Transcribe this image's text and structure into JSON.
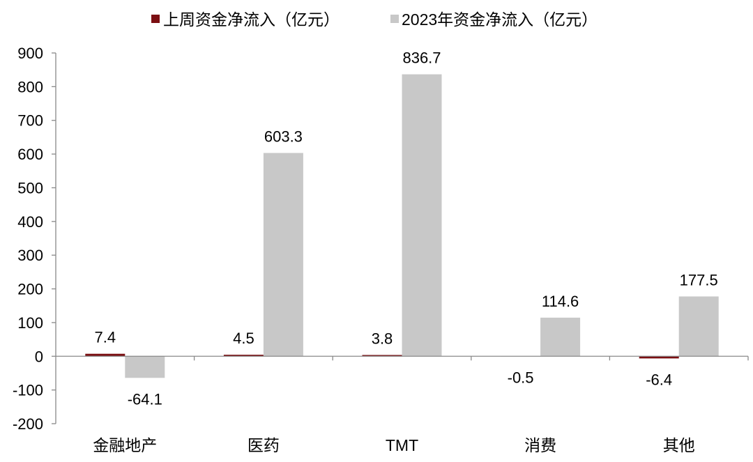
{
  "chart_data": {
    "type": "bar",
    "categories": [
      "金融地产",
      "医药",
      "TMT",
      "消费",
      "其他"
    ],
    "series": [
      {
        "name": "上周资金净流入（亿元）",
        "values": [
          7.4,
          4.5,
          3.8,
          -0.5,
          -6.4
        ],
        "color": "#7b0f12"
      },
      {
        "name": "2023年资金净流入（亿元）",
        "values": [
          -64.1,
          603.3,
          836.7,
          114.6,
          177.5
        ],
        "color": "#c8c8c8"
      }
    ],
    "ylim": [
      -200,
      900
    ],
    "yticks": [
      -200,
      -100,
      0,
      100,
      200,
      300,
      400,
      500,
      600,
      700,
      800,
      900
    ],
    "grid": false,
    "legend": "top",
    "data_labels": true
  },
  "colors": {
    "axis": "#898989",
    "text": "#000000"
  }
}
